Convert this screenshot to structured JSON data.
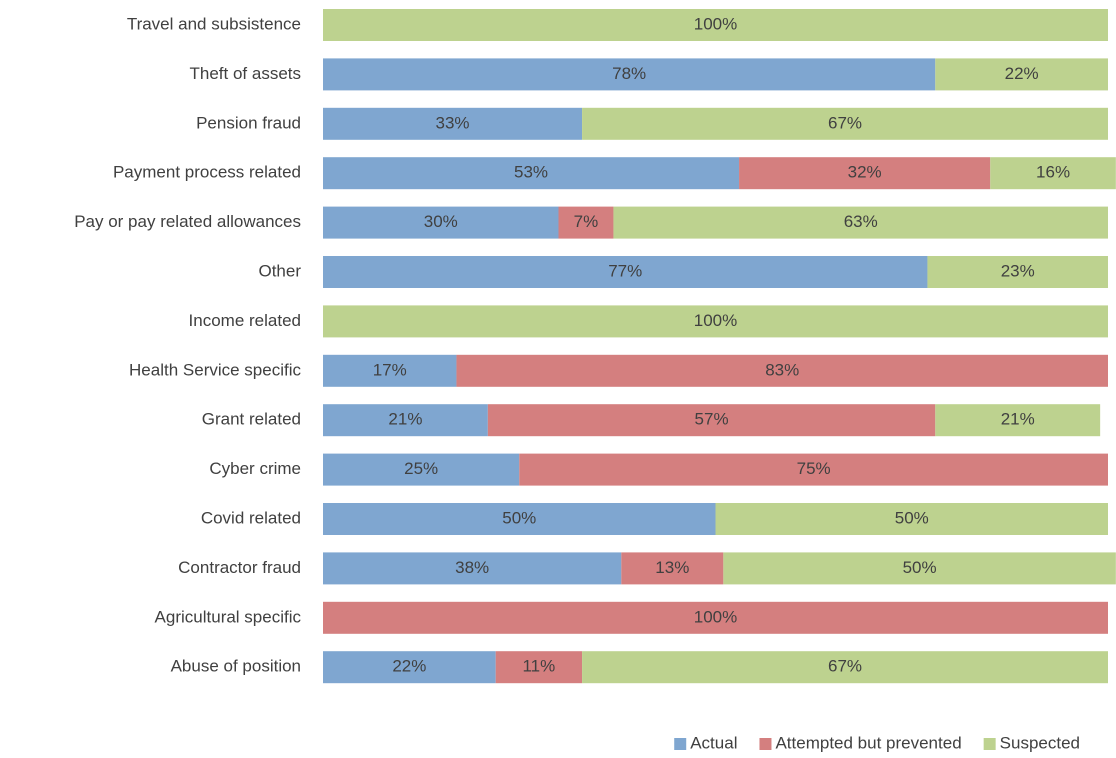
{
  "chart_data": {
    "type": "stacked-barh",
    "categories": [
      "Travel and subsistence",
      "Theft of assets",
      "Pension fraud",
      "Payment process related",
      "Pay or pay related allowances",
      "Other",
      "Income related",
      "Health Service specific",
      "Grant related",
      "Cyber crime",
      "Covid related",
      "Contractor fraud",
      "Agricultural specific",
      "Abuse of position"
    ],
    "xlim": [
      0,
      100
    ],
    "legend": "bottom",
    "series": [
      {
        "name": "Actual",
        "color": "#7fa6d0",
        "values": [
          null,
          78,
          33,
          53,
          30,
          77,
          null,
          17,
          21,
          25,
          50,
          38,
          null,
          22
        ],
        "value_labels": [
          null,
          "78%",
          "33%",
          "53%",
          "30%",
          "77%",
          null,
          "17%",
          "21%",
          "25%",
          "50%",
          "38%",
          null,
          "22%"
        ]
      },
      {
        "name": "Attempted but prevented",
        "color": "#d47f7f",
        "values": [
          null,
          null,
          null,
          32,
          7,
          null,
          null,
          83,
          57,
          75,
          null,
          13,
          100,
          11
        ],
        "value_labels": [
          null,
          null,
          null,
          "32%",
          "7%",
          null,
          null,
          "83%",
          "57%",
          "75%",
          null,
          "13%",
          "100%",
          "11%"
        ]
      },
      {
        "name": "Suspected",
        "color": "#bdd28f",
        "values": [
          100,
          22,
          67,
          16,
          63,
          23,
          100,
          null,
          21,
          null,
          50,
          50,
          null,
          67
        ],
        "value_labels": [
          "100%",
          "22%",
          "67%",
          "16%",
          "63%",
          "23%",
          "100%",
          null,
          "21%",
          null,
          "50%",
          "50%",
          null,
          "67%"
        ]
      }
    ]
  }
}
